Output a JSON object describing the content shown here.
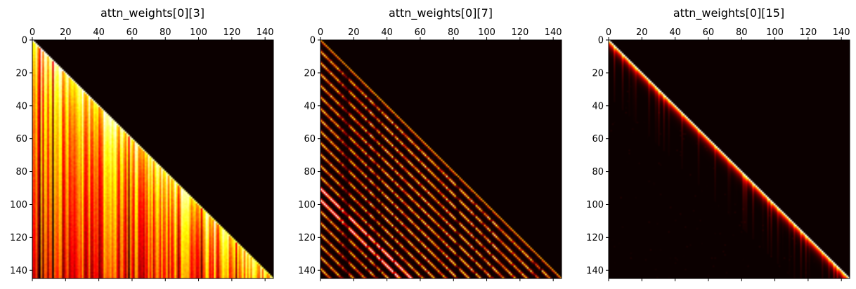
{
  "chart_data": [
    {
      "type": "heatmap",
      "title": "attn_weights[0][3]",
      "rows": 146,
      "cols": 146,
      "xlim": [
        0,
        145
      ],
      "ylim": [
        145,
        0
      ],
      "xticks": [
        0,
        20,
        40,
        60,
        80,
        100,
        120,
        140
      ],
      "yticks": [
        0,
        20,
        40,
        60,
        80,
        100,
        120,
        140
      ],
      "x_tick_position": "top",
      "colormap": "hot",
      "mask": "upper-triangle (future positions) = 0",
      "pattern": "broad attention below the diagonal with vertical stripes",
      "pattern_key": "broad"
    },
    {
      "type": "heatmap",
      "title": "attn_weights[0][7]",
      "rows": 146,
      "cols": 146,
      "xlim": [
        0,
        145
      ],
      "ylim": [
        145,
        0
      ],
      "xticks": [
        0,
        20,
        40,
        60,
        80,
        100,
        120,
        140
      ],
      "yticks": [
        0,
        20,
        40,
        60,
        80,
        100,
        120,
        140
      ],
      "x_tick_position": "top",
      "colormap": "hot",
      "mask": "upper-triangle (future positions) = 0",
      "pattern": "periodic diagonal stripes parallel to the main diagonal",
      "pattern_key": "periodic"
    },
    {
      "type": "heatmap",
      "title": "attn_weights[0][15]",
      "rows": 146,
      "cols": 146,
      "xlim": [
        0,
        145
      ],
      "ylim": [
        145,
        0
      ],
      "xticks": [
        0,
        20,
        40,
        60,
        80,
        100,
        120,
        140
      ],
      "yticks": [
        0,
        20,
        40,
        60,
        80,
        100,
        120,
        140
      ],
      "x_tick_position": "top",
      "colormap": "hot",
      "mask": "upper-triangle (future positions) = 0",
      "pattern": "sharp bright diagonal (local attention) with faint vertical streaks",
      "pattern_key": "diagonal"
    }
  ],
  "colors": {
    "background": "#ffffff",
    "colormap_stops": [
      "#0b0000",
      "#ff0000",
      "#ffff00",
      "#ffffff"
    ]
  }
}
